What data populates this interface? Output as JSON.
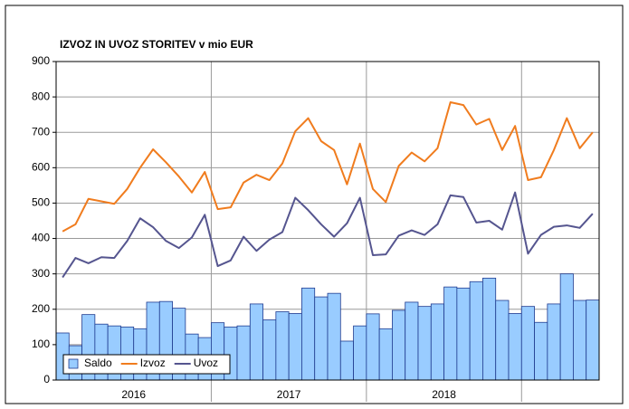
{
  "chart_data": {
    "type": "combo",
    "title": "IZVOZ IN UVOZ STORITEV v mio EUR",
    "categories": [
      null,
      null,
      null,
      null,
      null,
      null,
      null,
      null,
      null,
      null,
      null,
      null,
      null,
      null,
      null,
      null,
      null,
      null,
      null,
      null,
      null,
      null,
      null,
      null,
      null,
      null,
      null,
      null,
      null,
      null,
      null,
      null,
      null,
      null,
      null,
      null,
      null,
      null,
      null,
      null,
      null,
      null
    ],
    "year_labels": [
      "2016",
      "2017",
      "2018"
    ],
    "ylim": [
      0,
      900
    ],
    "yticks": [
      0,
      100,
      200,
      300,
      400,
      500,
      600,
      700,
      800,
      900
    ],
    "grid": true,
    "legend": "lower left",
    "series": [
      {
        "name": "Saldo",
        "type": "bar",
        "color": "#99ccff",
        "values": [
          133,
          97,
          185,
          158,
          153,
          150,
          145,
          220,
          222,
          203,
          130,
          120,
          162,
          150,
          153,
          215,
          170,
          193,
          188,
          260,
          235,
          245,
          110,
          153,
          187,
          145,
          197,
          220,
          208,
          215,
          263,
          260,
          278,
          288,
          225,
          188,
          208,
          163,
          215,
          300,
          225,
          226
        ]
      },
      {
        "name": "Izvoz",
        "type": "line",
        "color": "#f07c1e",
        "values": [
          420,
          440,
          512,
          505,
          498,
          540,
          600,
          652,
          615,
          575,
          530,
          588,
          483,
          488,
          558,
          580,
          565,
          612,
          703,
          740,
          675,
          650,
          553,
          668,
          540,
          503,
          605,
          643,
          618,
          655,
          785,
          777,
          722,
          738,
          650,
          718,
          565,
          573,
          650,
          740,
          655,
          700
        ]
      },
      {
        "name": "Uvoz",
        "type": "line",
        "color": "#55558f",
        "values": [
          290,
          345,
          330,
          347,
          345,
          393,
          457,
          432,
          393,
          373,
          403,
          467,
          322,
          338,
          405,
          365,
          397,
          418,
          515,
          480,
          440,
          405,
          443,
          515,
          353,
          355,
          408,
          423,
          410,
          440,
          522,
          517,
          445,
          450,
          425,
          530,
          357,
          410,
          433,
          437,
          430,
          470
        ]
      }
    ]
  }
}
